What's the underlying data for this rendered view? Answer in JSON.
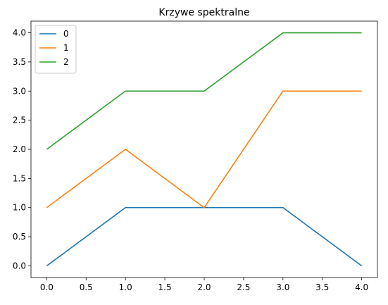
{
  "chart_data": {
    "type": "line",
    "title": "Krzywe spektralne",
    "xlabel": "",
    "ylabel": "",
    "x": [
      0,
      1,
      2,
      3,
      4
    ],
    "xlim": [
      -0.2,
      4.2
    ],
    "ylim": [
      -0.2,
      4.2
    ],
    "xticks": [
      "0.0",
      "0.5",
      "1.0",
      "1.5",
      "2.0",
      "2.5",
      "3.0",
      "3.5",
      "4.0"
    ],
    "yticks": [
      "0.0",
      "0.5",
      "1.0",
      "1.5",
      "2.0",
      "2.5",
      "3.0",
      "3.5",
      "4.0"
    ],
    "grid": false,
    "legend_position": "top-left",
    "series": [
      {
        "name": "0",
        "color": "#1f77b4",
        "values": [
          0,
          1,
          1,
          1,
          0
        ]
      },
      {
        "name": "1",
        "color": "#ff7f0e",
        "values": [
          1,
          2,
          1,
          3,
          3
        ]
      },
      {
        "name": "2",
        "color": "#2ca02c",
        "values": [
          2,
          3,
          3,
          4,
          4
        ]
      }
    ]
  }
}
